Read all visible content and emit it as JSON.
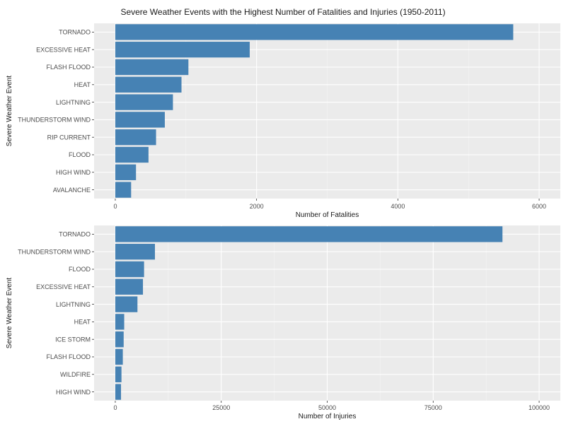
{
  "title": "Severe Weather Events with the Highest Number of Fatalities and Injuries (1950-2011)",
  "chart_data": [
    {
      "type": "bar",
      "orientation": "horizontal",
      "categories": [
        "TORNADO",
        "EXCESSIVE HEAT",
        "FLASH FLOOD",
        "HEAT",
        "LIGHTNING",
        "THUNDERSTORM WIND",
        "RIP CURRENT",
        "FLOOD",
        "HIGH WIND",
        "AVALANCHE"
      ],
      "values": [
        5633,
        1903,
        1035,
        937,
        816,
        701,
        577,
        470,
        293,
        224
      ],
      "xlabel": "Number of Fatalities",
      "ylabel": "Severe Weather Event",
      "xlim": [
        -300,
        6300
      ],
      "xticks": [
        0,
        2000,
        4000,
        6000
      ],
      "xtick_labels": [
        "0",
        "2000",
        "4000",
        "6000"
      ],
      "grid": true,
      "color": "#4682b4",
      "panel_background": "#ebebeb"
    },
    {
      "type": "bar",
      "orientation": "horizontal",
      "categories": [
        "TORNADO",
        "THUNDERSTORM WIND",
        "FLOOD",
        "EXCESSIVE HEAT",
        "LIGHTNING",
        "HEAT",
        "ICE STORM",
        "FLASH FLOOD",
        "WILDFIRE",
        "HIGH WIND"
      ],
      "values": [
        91346,
        9353,
        6789,
        6525,
        5230,
        2100,
        1975,
        1777,
        1456,
        1350
      ],
      "xlabel": "Number of Injuries",
      "ylabel": "Severe Weather Event",
      "xlim": [
        -5000,
        105000
      ],
      "xticks": [
        0,
        25000,
        50000,
        75000,
        100000
      ],
      "xtick_labels": [
        "0",
        "25000",
        "50000",
        "75000",
        "100000"
      ],
      "grid": true,
      "color": "#4682b4",
      "panel_background": "#ebebeb"
    }
  ]
}
